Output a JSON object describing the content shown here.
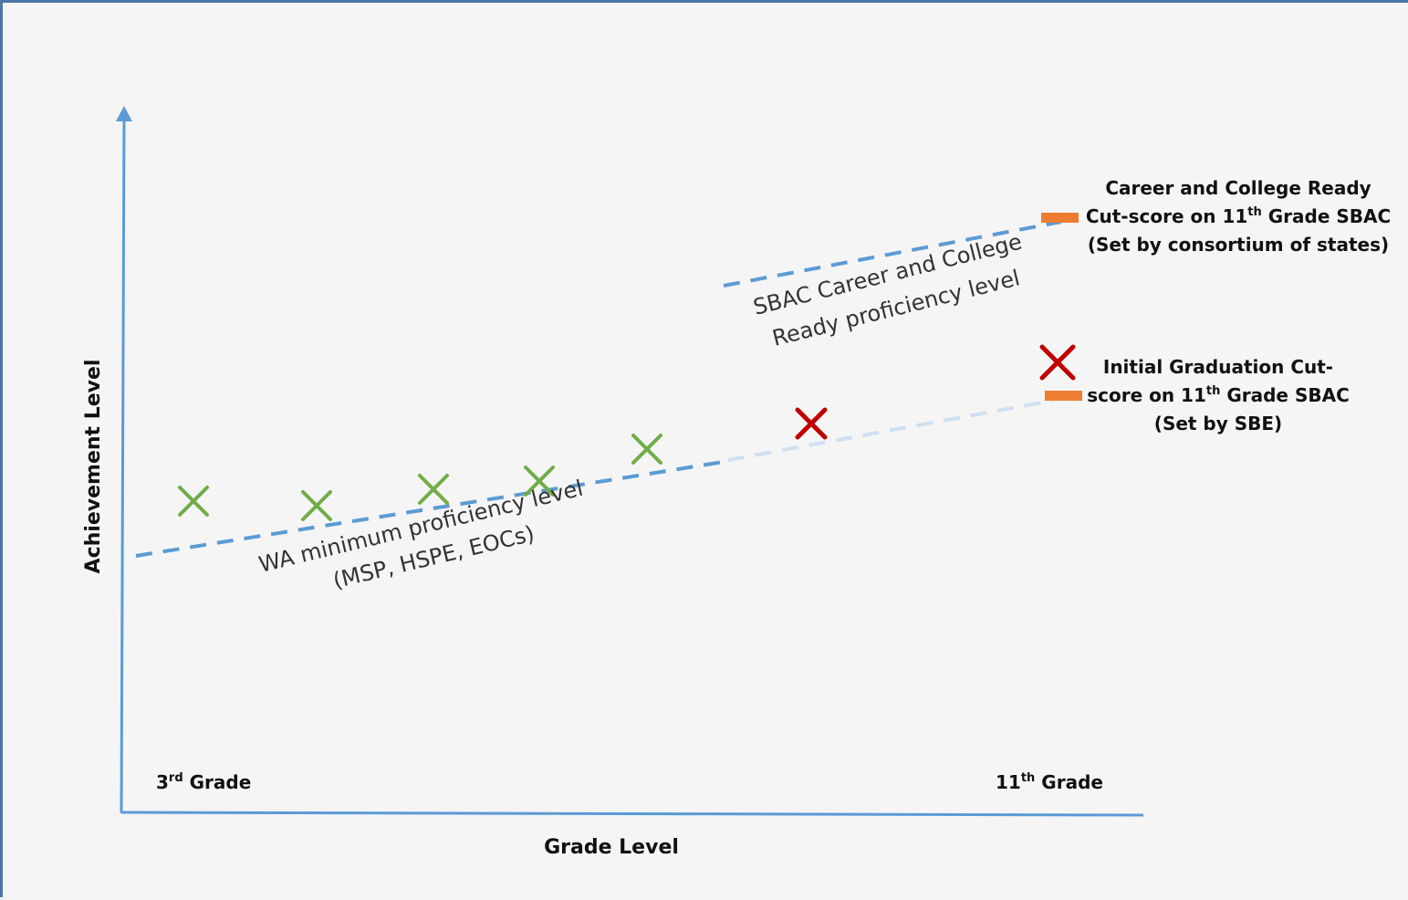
{
  "axes": {
    "x_title": "Grade Level",
    "y_title": "Achievement Level",
    "x_start": {
      "num": "3",
      "sup": "rd",
      "rest": " Grade"
    },
    "x_end": {
      "num": "11",
      "sup": "th",
      "rest": " Grade"
    }
  },
  "lines": {
    "wa": {
      "line1": "WA minimum  proficiency level",
      "line2": "(MSP, HSPE, EOCs)"
    },
    "sbac": {
      "line1": "SBAC Career and College",
      "line2": "Ready proficiency level"
    }
  },
  "notes": {
    "ccr": {
      "line1": "Career and College Ready",
      "line2_pre": "Cut-score on 11",
      "line2_sup": "th",
      "line2_post": " Grade SBAC",
      "line3": "(Set by consortium of states)"
    },
    "grad": {
      "line1": "Initial Graduation Cut-",
      "line2_pre": "score on 11",
      "line2_sup": "th",
      "line2_post": " Grade SBAC",
      "line3": "(Set by SBE)"
    }
  },
  "colors": {
    "axis": "#5b9bd5",
    "dash_line": "#5b9bd5",
    "faded_line": "#c9dcef",
    "pass_mark": "#70ad47",
    "fail_mark": "#c00000",
    "cut_marker": "#ed7d31"
  },
  "markers": [
    {
      "kind": "pass",
      "name": "pass-mark-1"
    },
    {
      "kind": "pass",
      "name": "pass-mark-2"
    },
    {
      "kind": "pass",
      "name": "pass-mark-3"
    },
    {
      "kind": "pass",
      "name": "pass-mark-4"
    },
    {
      "kind": "pass",
      "name": "pass-mark-5"
    },
    {
      "kind": "fail",
      "name": "fail-mark-1"
    },
    {
      "kind": "fail",
      "name": "fail-mark-2"
    }
  ]
}
